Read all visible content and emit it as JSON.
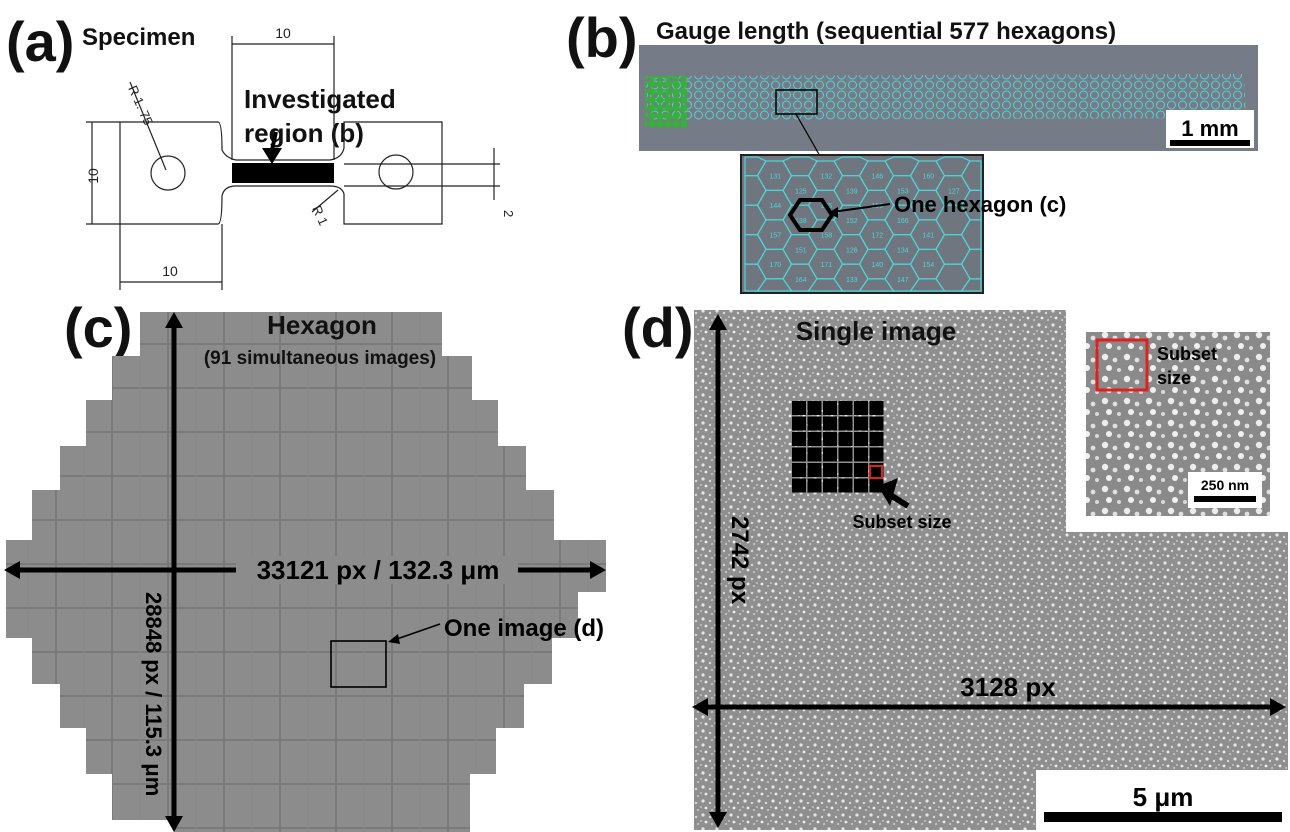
{
  "panel_a": {
    "letter": "(a)",
    "title": "Specimen",
    "label_investigated_1": "Investigated",
    "label_investigated_2": "region (b)",
    "dim_top": "10",
    "dim_left": "10",
    "dim_bottom": "10",
    "dim_radius_large": "R 1. 75",
    "dim_radius_small": "R 1",
    "dim_thickness": "2"
  },
  "panel_b": {
    "letter": "(b)",
    "title": "Gauge length (sequential 577 hexagons)",
    "scale_bar": "1 mm",
    "hexagon_label": "One hexagon (c)",
    "hex_numbers": [
      "131",
      "144",
      "157",
      "170",
      "125",
      "138",
      "151",
      "164",
      "132",
      "145",
      "158",
      "171",
      "139",
      "152",
      "126",
      "133",
      "146",
      "159",
      "172",
      "140",
      "153",
      "166",
      "134",
      "147",
      "160",
      "173",
      "141",
      "154",
      "127"
    ]
  },
  "panel_c": {
    "letter": "(c)",
    "title": "Hexagon",
    "subtitle": "(91 simultaneous images)",
    "horizontal_dim": "33121 px / 132.3 μm",
    "vertical_dim": "28848 px / 115.3 μm",
    "image_label": "One image (d)"
  },
  "panel_d": {
    "letter": "(d)",
    "title": "Single image",
    "subset_label": "Subset size",
    "inset_label_1": "Subset",
    "inset_label_2": "size",
    "inset_scale": "250 nm",
    "vertical_dim": "2742 px",
    "horizontal_dim": "3128 px",
    "scale_bar": "5 μm"
  },
  "colors": {
    "hex_green": "#2fb82f",
    "hex_cyan": "#4fd4d4",
    "subset_red": "#e02020",
    "ink": "#111111"
  }
}
